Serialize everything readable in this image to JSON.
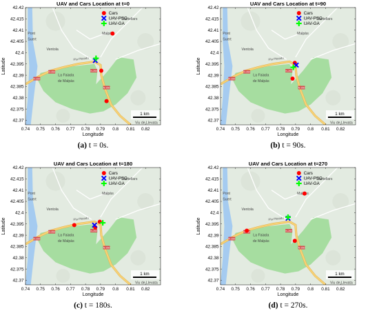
{
  "colors": {
    "cars": "#ff0000",
    "uav_pso": "#0000ff",
    "uav_ga": "#00ff00",
    "map_land": "#e3ebe1",
    "park": "#a6dda0",
    "water": "#a5cbf0",
    "road_main": "#f7d277",
    "road_minor": "#ffffff"
  },
  "map_labels": {
    "castellars": "Castellars",
    "malpas": "Malpàs",
    "ventola": "Ventola",
    "pont_suert": [
      "Pont",
      "Suert"
    ],
    "pla_pleiadu": "Pla Pleiadu",
    "la_faiada": [
      "La Faiada",
      "de Malpàs"
    ],
    "viu": "Viu de Llevata",
    "road_codes": [
      "N-260",
      "N-260",
      "N-260",
      "N-260"
    ]
  },
  "chart_data": [
    {
      "type": "scatter",
      "title": "UAV and Cars Location at t=0",
      "xlabel": "Longitude",
      "ylabel": "Latitude",
      "xlim": [
        0.74,
        0.83
      ],
      "ylim": [
        42.368,
        42.42
      ],
      "xticks": [
        "0.74",
        "0.75",
        "0.76",
        "0.77",
        "0.78",
        "0.79",
        "0.8",
        "0.81",
        "0.82"
      ],
      "yticks": [
        "42.37",
        "42.375",
        "42.38",
        "42.385",
        "42.39",
        "42.395",
        "42.4",
        "42.405",
        "42.41",
        "42.415",
        "42.42"
      ],
      "legend": {
        "position": "top-right",
        "entries": [
          "Cars",
          "UAV-PSO",
          "UAV-GA"
        ]
      },
      "scale_bar": "1 km",
      "grid": false,
      "series": [
        {
          "name": "Cars",
          "marker": "circle",
          "points": [
            [
              0.798,
              42.4085
            ],
            [
              0.7905,
              42.392
            ],
            [
              0.794,
              42.3785
            ]
          ]
        },
        {
          "name": "UAV-PSO",
          "marker": "x",
          "points": [
            [
              0.7865,
              42.3965
            ]
          ]
        },
        {
          "name": "UAV-GA",
          "marker": "plus",
          "points": [
            [
              0.787,
              42.3975
            ]
          ]
        }
      ],
      "caption": {
        "label": "(a)",
        "text": " t = 0s."
      }
    },
    {
      "type": "scatter",
      "title": "UAV and Cars Location at t=90",
      "xlabel": "Longitude",
      "ylabel": "Latitude",
      "xlim": [
        0.74,
        0.83
      ],
      "ylim": [
        42.368,
        42.42
      ],
      "xticks": [
        "0.74",
        "0.75",
        "0.76",
        "0.77",
        "0.78",
        "0.79",
        "0.8",
        "0.81",
        "0.82"
      ],
      "yticks": [
        "42.37",
        "42.375",
        "42.38",
        "42.385",
        "42.39",
        "42.395",
        "42.4",
        "42.405",
        "42.41",
        "42.415",
        "42.42"
      ],
      "legend": {
        "position": "top-right",
        "entries": [
          "Cars",
          "UAV-PSO",
          "UAV-GA"
        ]
      },
      "scale_bar": "1 km",
      "grid": false,
      "series": [
        {
          "name": "Cars",
          "marker": "circle",
          "points": [
            [
              0.7895,
              42.3955
            ],
            [
              0.788,
              42.3885
            ]
          ]
        },
        {
          "name": "UAV-PSO",
          "marker": "x",
          "points": [
            [
              0.7905,
              42.3945
            ]
          ]
        },
        {
          "name": "UAV-GA",
          "marker": "plus",
          "points": [
            [
              0.7885,
              42.3935
            ]
          ]
        }
      ],
      "caption": {
        "label": "(b)",
        "text": " t = 90s."
      }
    },
    {
      "type": "scatter",
      "title": "UAV and Cars Location at t=180",
      "xlabel": "Longitude",
      "ylabel": "Latitude",
      "xlim": [
        0.74,
        0.83
      ],
      "ylim": [
        42.368,
        42.42
      ],
      "xticks": [
        "0.74",
        "0.75",
        "0.76",
        "0.77",
        "0.78",
        "0.79",
        "0.8",
        "0.81",
        "0.82"
      ],
      "yticks": [
        "42.37",
        "42.375",
        "42.38",
        "42.385",
        "42.39",
        "42.395",
        "42.4",
        "42.405",
        "42.41",
        "42.415",
        "42.42"
      ],
      "legend": {
        "position": "top-right",
        "entries": [
          "Cars",
          "UAV-PSO",
          "UAV-GA"
        ]
      },
      "scale_bar": "1 km",
      "grid": false,
      "series": [
        {
          "name": "Cars",
          "marker": "circle",
          "points": [
            [
              0.7725,
              42.3945
            ],
            [
              0.7895,
              42.396
            ],
            [
              0.7865,
              42.3935
            ]
          ]
        },
        {
          "name": "UAV-PSO",
          "marker": "x",
          "points": [
            [
              0.786,
              42.3945
            ]
          ]
        },
        {
          "name": "UAV-GA",
          "marker": "plus",
          "points": [
            [
              0.7915,
              42.3955
            ]
          ]
        }
      ],
      "caption": {
        "label": "(c)",
        "text": " t = 180s."
      }
    },
    {
      "type": "scatter",
      "title": "UAV and Cars Location at t=270",
      "xlabel": "Longitude",
      "ylabel": "Latitude",
      "xlim": [
        0.74,
        0.83
      ],
      "ylim": [
        42.368,
        42.42
      ],
      "xticks": [
        "0.74",
        "0.75",
        "0.76",
        "0.77",
        "0.78",
        "0.79",
        "0.8",
        "0.81",
        "0.82"
      ],
      "yticks": [
        "42.37",
        "42.375",
        "42.38",
        "42.385",
        "42.39",
        "42.395",
        "42.4",
        "42.405",
        "42.41",
        "42.415",
        "42.42"
      ],
      "legend": {
        "position": "top-right",
        "entries": [
          "Cars",
          "UAV-PSO",
          "UAV-GA"
        ]
      },
      "scale_bar": "1 km",
      "grid": false,
      "series": [
        {
          "name": "Cars",
          "marker": "circle",
          "points": [
            [
              0.796,
              42.4085
            ],
            [
              0.7575,
              42.392
            ],
            [
              0.7895,
              42.3875
            ]
          ]
        },
        {
          "name": "UAV-PSO",
          "marker": "x",
          "points": [
            [
              0.785,
              42.3975
            ]
          ]
        },
        {
          "name": "UAV-GA",
          "marker": "plus",
          "points": [
            [
              0.785,
              42.398
            ]
          ]
        }
      ],
      "caption": {
        "label": "(d)",
        "text": " t = 270s."
      }
    }
  ]
}
